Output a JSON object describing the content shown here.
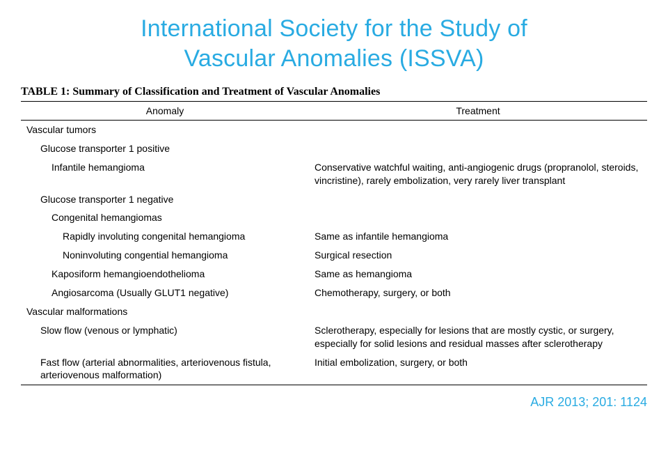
{
  "title_line1": "International Society for the Study of",
  "title_line2": "Vascular Anomalies (ISSVA)",
  "table_caption": "TABLE 1: Summary of Classification and Treatment of Vascular Anomalies",
  "headers": {
    "anomaly": "Anomaly",
    "treatment": "Treatment"
  },
  "rows": [
    {
      "anomaly": "Vascular tumors",
      "treatment": "",
      "indent": 0
    },
    {
      "anomaly": "Glucose transporter 1 positive",
      "treatment": "",
      "indent": 1
    },
    {
      "anomaly": "Infantile hemangioma",
      "treatment": "Conservative watchful waiting, anti-angiogenic drugs (propranolol, steroids, vincristine), rarely embolization, very rarely liver transplant",
      "indent": 2
    },
    {
      "anomaly": "Glucose transporter 1 negative",
      "treatment": "",
      "indent": 1
    },
    {
      "anomaly": "Congenital hemangiomas",
      "treatment": "",
      "indent": 2
    },
    {
      "anomaly": "Rapidly involuting congenital hemangioma",
      "treatment": "Same as infantile hemangioma",
      "indent": 3
    },
    {
      "anomaly": "Noninvoluting congential hemangioma",
      "treatment": "Surgical resection",
      "indent": 3
    },
    {
      "anomaly": "Kaposiform hemangioendothelioma",
      "treatment": "Same as hemangioma",
      "indent": 2
    },
    {
      "anomaly": "Angiosarcoma (Usually GLUT1 negative)",
      "treatment": "Chemotherapy, surgery, or both",
      "indent": 2
    },
    {
      "anomaly": "Vascular malformations",
      "treatment": "",
      "indent": 0
    },
    {
      "anomaly": "Slow flow (venous or lymphatic)",
      "treatment": "Sclerotherapy, especially for lesions that are mostly cystic, or surgery, especially for solid lesions and residual masses after sclerotherapy",
      "indent": 1
    },
    {
      "anomaly": "Fast flow (arterial abnormalities, arteriovenous fistula, arteriovenous malformation)",
      "treatment": "Initial embolization, surgery, or both",
      "indent": 1
    }
  ],
  "citation": "AJR 2013; 201: 1124",
  "colors": {
    "accent": "#29abe2",
    "text": "#000000",
    "background": "#ffffff"
  }
}
